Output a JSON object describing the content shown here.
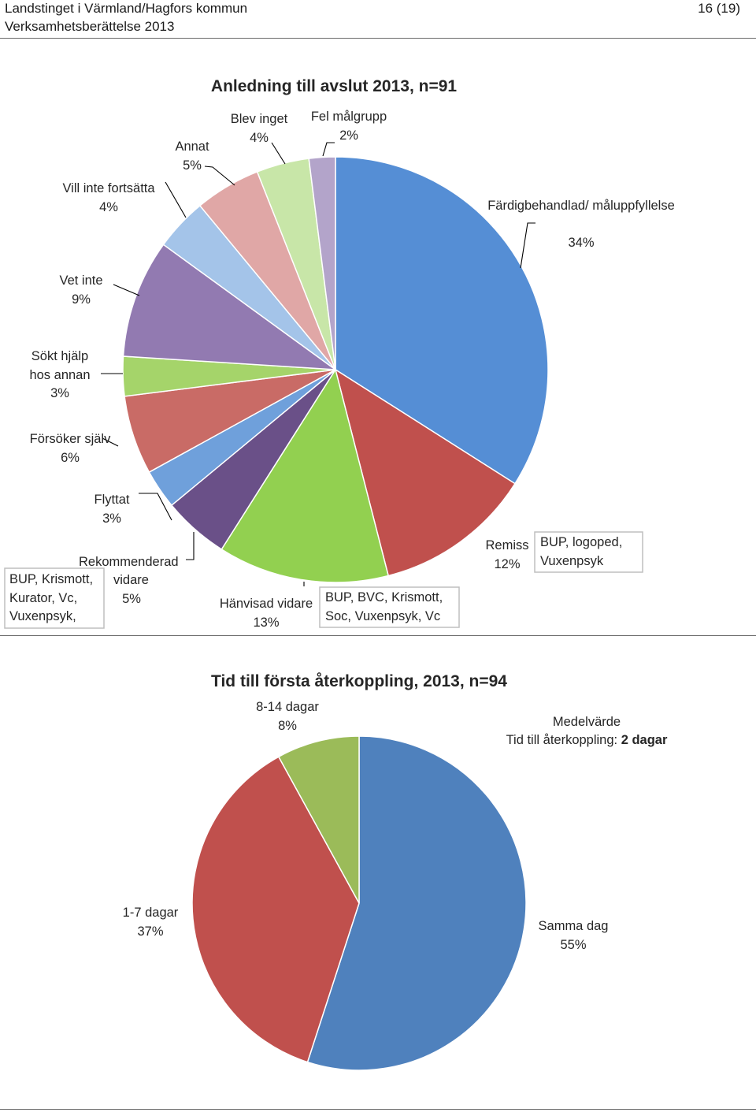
{
  "header": {
    "org": "Landstinget i Värmland/Hagfors kommun",
    "report": "Verksamhetsberättelse 2013",
    "page": "16 (19)"
  },
  "chart_data": [
    {
      "type": "pie",
      "title": "Anledning till avslut 2013, n=91",
      "slices": [
        {
          "label": "Färdigbehandlad/ måluppfyllelse",
          "value": 34,
          "value_label": "34%",
          "color": "#558ED5"
        },
        {
          "label": "Remiss",
          "value": 12,
          "value_label": "12%",
          "color": "#C0504D"
        },
        {
          "label": "Hänvisad vidare",
          "value": 13,
          "value_label": "13%",
          "color": "#92D050"
        },
        {
          "label": "Rekommenderad vidare",
          "value": 5,
          "value_label": "5%",
          "color": "#6A5088"
        },
        {
          "label": "Flyttat",
          "value": 3,
          "value_label": "3%",
          "color": "#6FA0DB"
        },
        {
          "label": "Försöker själv",
          "value": 6,
          "value_label": "6%",
          "color": "#C96B66"
        },
        {
          "label": "Sökt hjälp hos annan",
          "value": 3,
          "value_label": "3%",
          "color": "#A5D46A"
        },
        {
          "label": "Vet inte",
          "value": 9,
          "value_label": "9%",
          "color": "#927AB1"
        },
        {
          "label": "Vill inte fortsätta",
          "value": 4,
          "value_label": "4%",
          "color": "#A4C4E9"
        },
        {
          "label": "Annat",
          "value": 5,
          "value_label": "5%",
          "color": "#E0A7A6"
        },
        {
          "label": "Blev inget",
          "value": 4,
          "value_label": "4%",
          "color": "#C8E6A8"
        },
        {
          "label": "Fel målgrupp",
          "value": 2,
          "value_label": "2%",
          "color": "#B3A4CA"
        }
      ],
      "annotations": [
        "BUP, logoped, Vuxenpsyk",
        "BUP, BVC, Krismott, Soc, Vuxenpsyk, Vc",
        "BUP, Krismott, Kurator, Vc, Vuxenpsyk,"
      ]
    },
    {
      "type": "pie",
      "title": "Tid till första återkoppling, 2013, n=94",
      "slices": [
        {
          "label": "Samma dag",
          "value": 55,
          "value_label": "55%",
          "color": "#4F81BD"
        },
        {
          "label": "1-7 dagar",
          "value": 37,
          "value_label": "37%",
          "color": "#C0504D"
        },
        {
          "label": "8-14 dagar",
          "value": 8,
          "value_label": "8%",
          "color": "#9BBB59"
        }
      ],
      "annotations": {
        "heading": "Medelvärde",
        "text": "Tid till återkoppling: ",
        "value": "2 dagar"
      }
    }
  ]
}
